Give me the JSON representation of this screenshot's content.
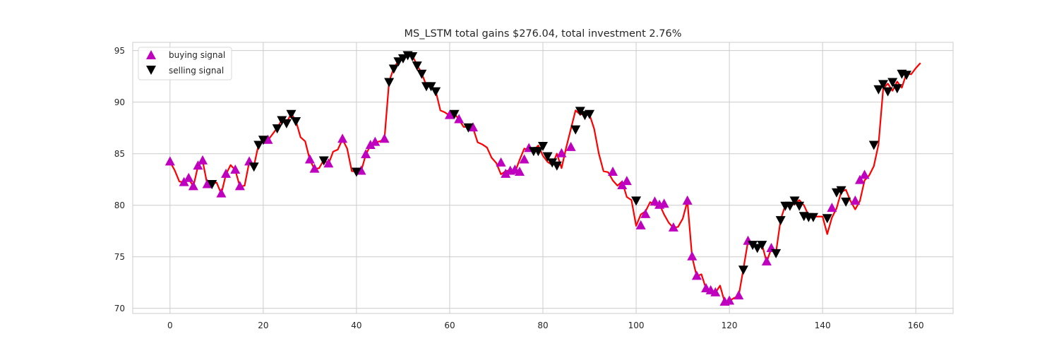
{
  "chart_data": {
    "type": "line",
    "title": "MS_LSTM total gains $276.04, total investment 2.76%",
    "xlabel": "",
    "ylabel": "",
    "xlim": [
      -8,
      168
    ],
    "ylim": [
      69.5,
      95.8
    ],
    "x_ticks": [
      0,
      20,
      40,
      60,
      80,
      100,
      120,
      140,
      160
    ],
    "y_ticks": [
      70,
      75,
      80,
      85,
      90,
      95
    ],
    "grid": true,
    "legend_position": "upper-left",
    "colors": {
      "line": "#ff0000",
      "buy": "#bf00bf",
      "sell": "#000000",
      "grid": "#cccccc",
      "spine": "#cccccc"
    },
    "series": [
      {
        "kind": "line",
        "values": [
          84.2,
          83.4,
          82.3,
          82.2,
          82.6,
          81.8,
          83.8,
          84.3,
          82.0,
          82.1,
          82.2,
          81.1,
          83.0,
          83.9,
          83.4,
          81.8,
          81.9,
          84.2,
          83.8,
          85.9,
          86.4,
          86.3,
          86.9,
          87.5,
          88.3,
          88.0,
          88.9,
          88.2,
          86.6,
          86.2,
          84.4,
          83.5,
          83.6,
          84.4,
          84.0,
          85.2,
          85.4,
          86.4,
          85.5,
          83.3,
          83.3,
          83.3,
          84.9,
          85.8,
          86.1,
          86.2,
          86.4,
          92.0,
          93.3,
          94.0,
          94.3,
          94.6,
          94.5,
          93.6,
          92.8,
          91.6,
          91.6,
          91.1,
          89.2,
          89.0,
          88.7,
          88.9,
          88.3,
          87.6,
          87.6,
          87.5,
          86.1,
          85.9,
          85.6,
          84.6,
          84.1,
          83.0,
          83.3,
          83.4,
          83.2,
          84.4,
          85.5,
          85.3,
          85.3,
          85.8,
          84.8,
          84.2,
          83.9,
          85.0,
          83.6,
          85.6,
          87.4,
          89.2,
          88.8,
          88.9,
          88.8,
          87.4,
          85.0,
          83.3,
          83.2,
          82.4,
          81.9,
          82.3,
          80.8,
          80.5,
          78.0,
          79.1,
          79.4,
          80.3,
          80.0,
          80.1,
          79.1,
          78.3,
          77.8,
          77.9,
          78.7,
          80.4,
          75.0,
          73.1,
          73.3,
          71.9,
          71.7,
          71.5,
          72.2,
          70.6,
          70.7,
          71.0,
          71.2,
          73.8,
          76.5,
          76.2,
          75.9,
          76.2,
          74.5,
          75.8,
          75.4,
          78.6,
          80.0,
          80.0,
          80.1,
          80.5,
          80.0,
          79.0,
          78.9,
          78.9,
          78.9,
          77.2,
          78.8,
          79.7,
          81.3,
          81.5,
          80.4,
          79.6,
          80.4,
          82.4,
          82.9,
          83.8,
          85.9,
          91.3,
          91.8,
          91.1,
          92.0,
          91.4,
          92.8,
          92.7,
          93.3,
          93.8
        ]
      },
      {
        "name": "buying signal",
        "kind": "marker-up",
        "points": [
          [
            0,
            84.2
          ],
          [
            3,
            82.2
          ],
          [
            4,
            82.6
          ],
          [
            5,
            81.8
          ],
          [
            6,
            83.8
          ],
          [
            7,
            84.3
          ],
          [
            8,
            82.0
          ],
          [
            11,
            81.1
          ],
          [
            12,
            83.0
          ],
          [
            14,
            83.4
          ],
          [
            15,
            81.8
          ],
          [
            17,
            84.2
          ],
          [
            21,
            86.3
          ],
          [
            30,
            84.4
          ],
          [
            31,
            83.5
          ],
          [
            34,
            84.0
          ],
          [
            37,
            86.4
          ],
          [
            41,
            83.3
          ],
          [
            42,
            84.9
          ],
          [
            43,
            85.8
          ],
          [
            44,
            86.1
          ],
          [
            46,
            86.4
          ],
          [
            60,
            88.7
          ],
          [
            62,
            88.3
          ],
          [
            65,
            87.5
          ],
          [
            71,
            84.1
          ],
          [
            72,
            83.0
          ],
          [
            73,
            83.3
          ],
          [
            74,
            83.4
          ],
          [
            75,
            83.2
          ],
          [
            76,
            84.4
          ],
          [
            77,
            85.5
          ],
          [
            84,
            85.0
          ],
          [
            86,
            85.6
          ],
          [
            95,
            83.2
          ],
          [
            97,
            81.9
          ],
          [
            98,
            82.3
          ],
          [
            101,
            78.0
          ],
          [
            102,
            79.1
          ],
          [
            104,
            80.3
          ],
          [
            105,
            80.0
          ],
          [
            106,
            80.1
          ],
          [
            108,
            77.8
          ],
          [
            111,
            80.4
          ],
          [
            112,
            75.0
          ],
          [
            113,
            73.1
          ],
          [
            115,
            71.9
          ],
          [
            116,
            71.7
          ],
          [
            117,
            71.5
          ],
          [
            119,
            70.6
          ],
          [
            120,
            70.7
          ],
          [
            122,
            71.2
          ],
          [
            124,
            76.5
          ],
          [
            128,
            74.5
          ],
          [
            129,
            75.8
          ],
          [
            142,
            79.7
          ],
          [
            147,
            80.4
          ],
          [
            148,
            82.4
          ],
          [
            149,
            82.9
          ]
        ]
      },
      {
        "name": "selling signal",
        "kind": "marker-down",
        "points": [
          [
            9,
            82.1
          ],
          [
            18,
            83.8
          ],
          [
            19,
            85.9
          ],
          [
            20,
            86.4
          ],
          [
            23,
            87.5
          ],
          [
            24,
            88.3
          ],
          [
            25,
            88.0
          ],
          [
            26,
            88.9
          ],
          [
            27,
            88.2
          ],
          [
            33,
            84.4
          ],
          [
            40,
            83.3
          ],
          [
            47,
            92.0
          ],
          [
            48,
            93.3
          ],
          [
            49,
            94.0
          ],
          [
            50,
            94.3
          ],
          [
            51,
            94.6
          ],
          [
            52,
            94.5
          ],
          [
            53,
            93.6
          ],
          [
            54,
            92.8
          ],
          [
            55,
            91.6
          ],
          [
            56,
            91.6
          ],
          [
            57,
            91.1
          ],
          [
            61,
            88.9
          ],
          [
            64,
            87.6
          ],
          [
            78,
            85.3
          ],
          [
            79,
            85.3
          ],
          [
            80,
            85.8
          ],
          [
            81,
            84.8
          ],
          [
            82,
            84.2
          ],
          [
            83,
            83.9
          ],
          [
            87,
            87.4
          ],
          [
            88,
            89.2
          ],
          [
            89,
            88.8
          ],
          [
            90,
            88.9
          ],
          [
            100,
            80.5
          ],
          [
            123,
            73.8
          ],
          [
            125,
            76.2
          ],
          [
            126,
            75.9
          ],
          [
            127,
            76.2
          ],
          [
            130,
            75.4
          ],
          [
            131,
            78.6
          ],
          [
            132,
            80.0
          ],
          [
            133,
            80.0
          ],
          [
            134,
            80.5
          ],
          [
            135,
            80.0
          ],
          [
            136,
            79.0
          ],
          [
            137,
            78.9
          ],
          [
            138,
            78.9
          ],
          [
            141,
            78.8
          ],
          [
            143,
            81.3
          ],
          [
            144,
            81.5
          ],
          [
            145,
            80.4
          ],
          [
            151,
            85.9
          ],
          [
            152,
            91.3
          ],
          [
            153,
            91.8
          ],
          [
            154,
            91.1
          ],
          [
            155,
            92.0
          ],
          [
            156,
            91.4
          ],
          [
            157,
            92.8
          ],
          [
            158,
            92.7
          ]
        ]
      }
    ]
  }
}
